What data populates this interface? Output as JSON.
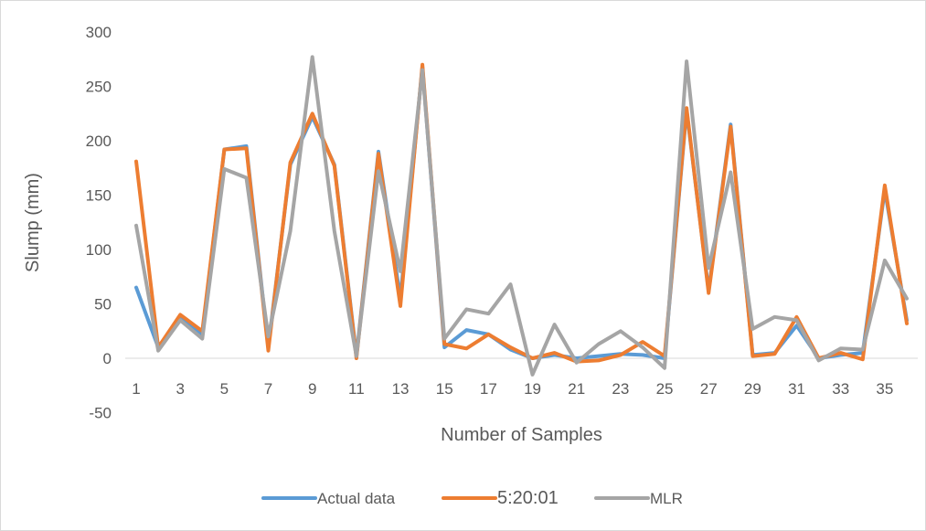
{
  "chart_data": {
    "type": "line",
    "title": "",
    "xlabel": "Number of Samples",
    "ylabel": "Slump (mm)",
    "ylim": [
      -50,
      300
    ],
    "yticks": [
      -50,
      0,
      50,
      100,
      150,
      200,
      250,
      300
    ],
    "x": [
      1,
      2,
      3,
      4,
      5,
      6,
      7,
      8,
      9,
      10,
      11,
      12,
      13,
      14,
      15,
      16,
      17,
      18,
      19,
      20,
      21,
      22,
      23,
      24,
      25,
      26,
      27,
      28,
      29,
      30,
      31,
      32,
      33,
      34,
      35,
      36
    ],
    "xtick_labels": [
      "1",
      "3",
      "5",
      "7",
      "9",
      "11",
      "13",
      "15",
      "17",
      "19",
      "21",
      "23",
      "25",
      "27",
      "29",
      "31",
      "33",
      "35"
    ],
    "grid": false,
    "legend_position": "bottom",
    "series": [
      {
        "name": "Actual data",
        "color": "#5b9bd5",
        "values": [
          65,
          10,
          38,
          22,
          192,
          195,
          10,
          178,
          222,
          178,
          2,
          190,
          55,
          268,
          10,
          26,
          22,
          8,
          0,
          3,
          0,
          2,
          4,
          3,
          0,
          228,
          62,
          215,
          3,
          5,
          30,
          0,
          3,
          5,
          155,
          35
        ]
      },
      {
        "name": "5:20:01",
        "color": "#ed7d31",
        "values": [
          181,
          10,
          40,
          25,
          192,
          193,
          7,
          180,
          225,
          177,
          0,
          188,
          48,
          270,
          13,
          9,
          22,
          10,
          0,
          5,
          -3,
          -2,
          3,
          15,
          2,
          230,
          60,
          213,
          2,
          4,
          38,
          0,
          5,
          -1,
          159,
          32
        ]
      },
      {
        "name": "MLR",
        "color": "#a5a5a5",
        "values": [
          122,
          7,
          35,
          18,
          174,
          166,
          20,
          117,
          277,
          117,
          2,
          172,
          80,
          265,
          18,
          45,
          41,
          68,
          -15,
          31,
          -4,
          13,
          25,
          10,
          -9,
          273,
          83,
          171,
          27,
          38,
          35,
          -2,
          9,
          8,
          90,
          55
        ]
      }
    ]
  }
}
